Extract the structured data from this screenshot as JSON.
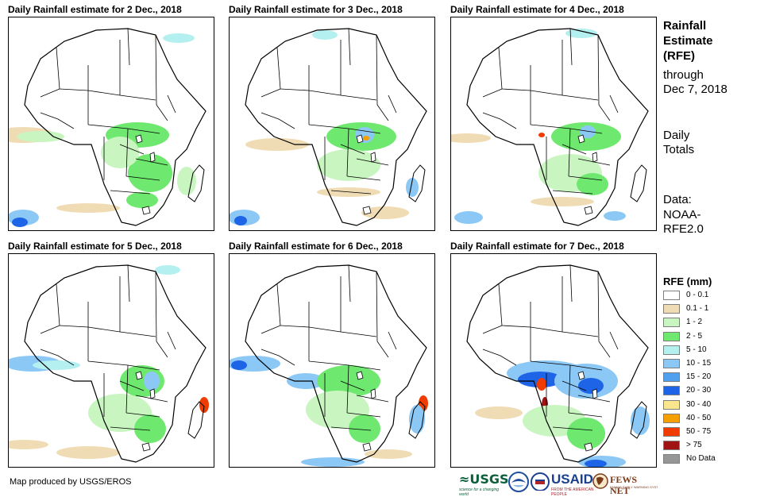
{
  "panels": [
    {
      "title": "Daily Rainfall estimate for 2 Dec., 2018",
      "day": 2
    },
    {
      "title": "Daily Rainfall estimate for 3 Dec., 2018",
      "day": 3
    },
    {
      "title": "Daily Rainfall estimate for 4 Dec., 2018",
      "day": 4
    },
    {
      "title": "Daily Rainfall estimate for 5 Dec., 2018",
      "day": 5
    },
    {
      "title": "Daily Rainfall estimate for 6 Dec., 2018",
      "day": 6
    },
    {
      "title": "Daily Rainfall estimate for 7 Dec., 2018",
      "day": 7
    }
  ],
  "side": {
    "title_1": "Rainfall",
    "title_2": "Estimate",
    "title_3": "(RFE)",
    "through": "through",
    "date": "Dec 7, 2018",
    "daily_1": "Daily",
    "daily_2": "Totals",
    "data_1": "Data:",
    "data_2": "NOAA-",
    "data_3": "RFE2.0"
  },
  "legend": {
    "title": "RFE (mm)",
    "items": [
      {
        "label": "0 - 0.1",
        "color": "#ffffff"
      },
      {
        "label": "0.1 - 1",
        "color": "#f0dcb4"
      },
      {
        "label": "1 - 2",
        "color": "#c8f5c0"
      },
      {
        "label": "2 - 5",
        "color": "#6ee86e"
      },
      {
        "label": "5 - 10",
        "color": "#b4f0f0"
      },
      {
        "label": "10 - 15",
        "color": "#8cc8f5"
      },
      {
        "label": "15 - 20",
        "color": "#50a0f0"
      },
      {
        "label": "20 - 30",
        "color": "#1e64e6"
      },
      {
        "label": "30 - 40",
        "color": "#fae68c"
      },
      {
        "label": "40 - 50",
        "color": "#f5a000"
      },
      {
        "label": "50 - 75",
        "color": "#f03c00"
      },
      {
        "label": "> 75",
        "color": "#a01414"
      },
      {
        "label": "No Data",
        "color": "#969696"
      }
    ]
  },
  "credit": "Map produced by USGS/EROS",
  "logos": {
    "usgs": "≈USGS",
    "usgs_tagline": "science for a changing world",
    "usaid": "USAID",
    "usaid_tagline": "FROM THE AMERICAN PEOPLE",
    "fews": "FEWS NET",
    "fews_tagline": "FAMINE EARLY WARNING SYSTEMS NETWORK"
  }
}
